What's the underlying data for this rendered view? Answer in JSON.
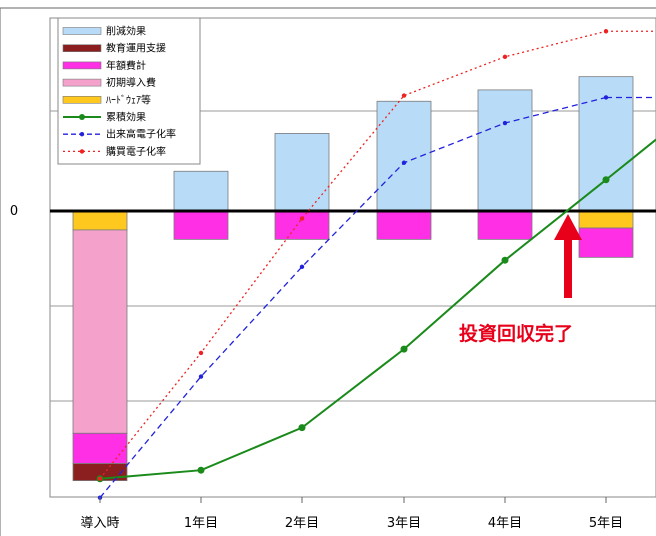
{
  "chart_data": {
    "type": "bar",
    "categories": [
      "導入時",
      "1年目",
      "2年目",
      "3年目",
      "4年目",
      "5年目"
    ],
    "zero_label": "0",
    "ylim": [
      -300,
      210
    ],
    "stacked_bars": [
      {
        "name": "削減効果",
        "color": "#b8dcf8",
        "values": [
          0,
          42,
          82,
          116,
          128,
          142
        ]
      },
      {
        "name": "ハードウェア等",
        "color": "#ffc81e",
        "values": [
          -20,
          0,
          0,
          0,
          0,
          -18
        ]
      },
      {
        "name": "初期導入費",
        "color": "#f4a2cc",
        "values": [
          -215,
          0,
          0,
          0,
          0,
          0
        ]
      },
      {
        "name": "年額費計",
        "color": "#ff2fe6",
        "values": [
          -32,
          -30,
          -30,
          -30,
          -30,
          -31
        ]
      },
      {
        "name": "教育運用支援",
        "color": "#8b1e1e",
        "values": [
          -18,
          0,
          0,
          0,
          0,
          0
        ]
      }
    ],
    "lines": [
      {
        "name": "累積効果",
        "color": "#1a8a1a",
        "style": "solid",
        "values": [
          -283,
          -274,
          -229,
          -146,
          -52,
          33
        ]
      },
      {
        "name": "出来高電子化率",
        "color": "#2222dd",
        "style": "dashed",
        "values": [
          -303,
          -175,
          -59,
          51,
          93,
          120
        ]
      },
      {
        "name": "購買電子化率",
        "color": "#ee2222",
        "style": "dotted",
        "values": [
          -283,
          -150,
          -8,
          122,
          163,
          190
        ]
      }
    ],
    "legend": {
      "position": "top-left",
      "items": [
        {
          "label": "削減効果",
          "kind": "bar",
          "color": "#b8dcf8"
        },
        {
          "label": "教育運用支援",
          "kind": "bar",
          "color": "#8b1e1e"
        },
        {
          "label": "年額費計",
          "kind": "bar",
          "color": "#ff2fe6"
        },
        {
          "label": "初期導入費",
          "kind": "bar",
          "color": "#f4a2cc"
        },
        {
          "label": "ﾊｰﾄﾞｳｪｱ等",
          "kind": "bar",
          "color": "#ffc81e"
        },
        {
          "label": "累積効果",
          "kind": "solid",
          "color": "#1a8a1a"
        },
        {
          "label": "出来高電子化率",
          "kind": "dashed",
          "color": "#2222dd"
        },
        {
          "label": "購買電子化率",
          "kind": "dotted",
          "color": "#ee2222"
        }
      ]
    },
    "annotation": {
      "text": "投資回収完了",
      "color": "#e8001a"
    },
    "grid": true
  }
}
